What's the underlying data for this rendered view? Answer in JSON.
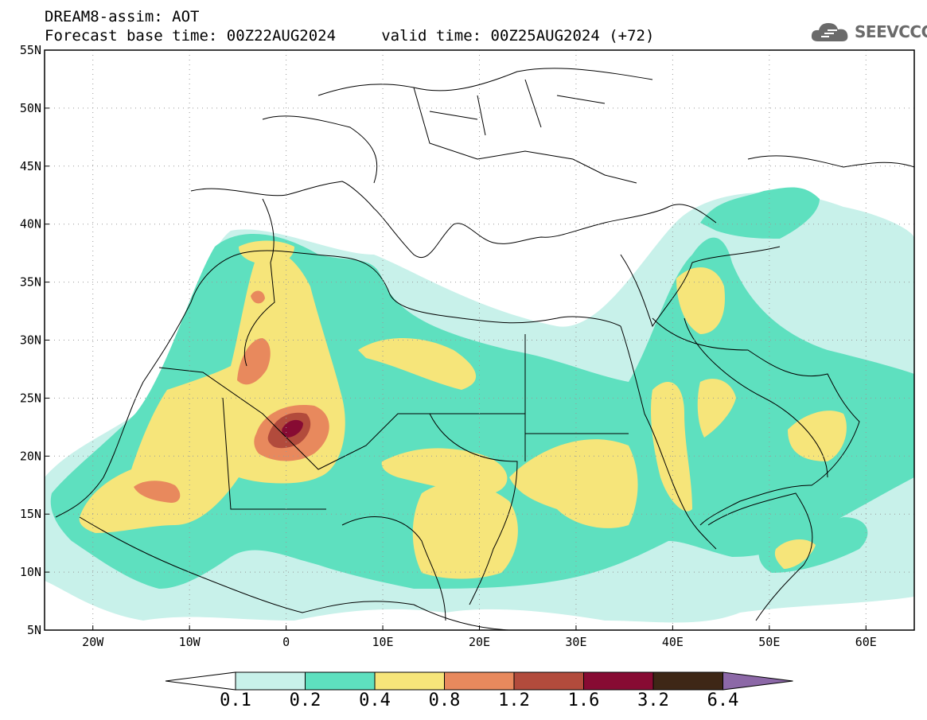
{
  "header": {
    "title_line1": "DREAM8-assim: AOT",
    "title_line2": "Forecast base time: 00Z22AUG2024     valid time: 00Z25AUG2024 (+72)"
  },
  "logo": {
    "text": "SEEVCCC",
    "icon": "cloud-icon"
  },
  "map": {
    "lon_range": [
      -25,
      65
    ],
    "lat_range": [
      5,
      55
    ],
    "lon_ticks": [
      {
        "value": -20,
        "label": "20W"
      },
      {
        "value": -10,
        "label": "10W"
      },
      {
        "value": 0,
        "label": "0"
      },
      {
        "value": 10,
        "label": "10E"
      },
      {
        "value": 20,
        "label": "20E"
      },
      {
        "value": 30,
        "label": "30E"
      },
      {
        "value": 40,
        "label": "40E"
      },
      {
        "value": 50,
        "label": "50E"
      },
      {
        "value": 60,
        "label": "60E"
      }
    ],
    "lat_ticks": [
      {
        "value": 55,
        "label": "55N"
      },
      {
        "value": 50,
        "label": "50N"
      },
      {
        "value": 45,
        "label": "45N"
      },
      {
        "value": 40,
        "label": "40N"
      },
      {
        "value": 35,
        "label": "35N"
      },
      {
        "value": 30,
        "label": "30N"
      },
      {
        "value": 25,
        "label": "25N"
      },
      {
        "value": 20,
        "label": "20N"
      },
      {
        "value": 15,
        "label": "15N"
      },
      {
        "value": 10,
        "label": "10N"
      },
      {
        "value": 5,
        "label": "5N"
      }
    ],
    "gridlines": true
  },
  "colorbar": {
    "colors": [
      "#ffffff",
      "#c8f1ea",
      "#5ee0bf",
      "#f6e57a",
      "#e8895d",
      "#b24b3c",
      "#870b33",
      "#3e2716",
      "#8c68a7"
    ],
    "labels": [
      "0.1",
      "0.2",
      "0.4",
      "0.8",
      "1.2",
      "1.6",
      "3.2",
      "6.4"
    ]
  }
}
